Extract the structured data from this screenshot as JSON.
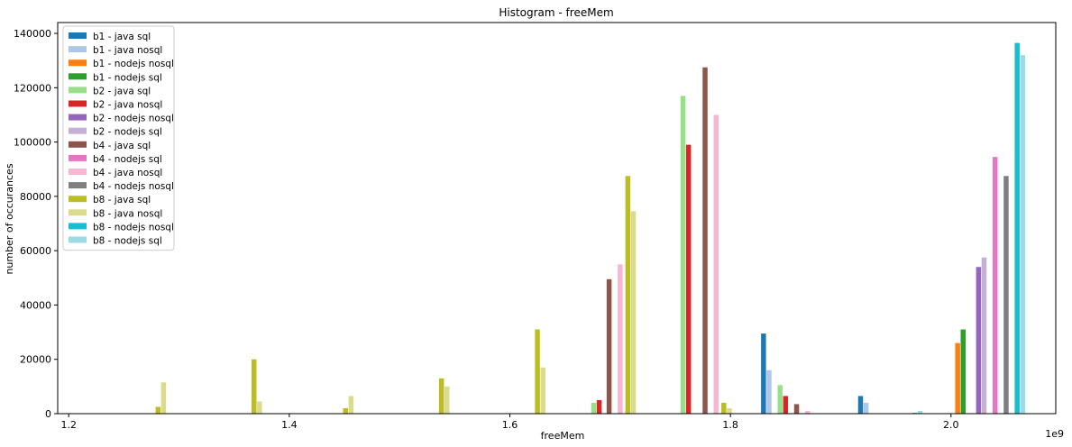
{
  "chart_data": {
    "type": "bar",
    "title": "Histogram - freeMem",
    "xlabel": "freeMem",
    "ylabel": "number of occurances",
    "x_offset_label": "1e9",
    "xlim": [
      1.19,
      2.095
    ],
    "ylim": [
      0,
      144000
    ],
    "xticks": [
      1.2,
      1.4,
      1.6,
      1.8,
      2.0
    ],
    "xtick_labels": [
      "1.2",
      "1.4",
      "1.6",
      "1.8",
      "2.0"
    ],
    "yticks": [
      0,
      20000,
      40000,
      60000,
      80000,
      100000,
      120000,
      140000
    ],
    "ytick_labels": [
      "0",
      "20000",
      "40000",
      "60000",
      "80000",
      "100000",
      "120000",
      "140000"
    ],
    "grid": false,
    "legend_position": "top-left",
    "bar_width": 0.0045,
    "series": [
      {
        "name": "b1 - java sql",
        "color": "#1f77b4",
        "x": [
          1.83,
          1.918
        ],
        "values": [
          29500,
          6500
        ]
      },
      {
        "name": "b1 - java nosql",
        "color": "#aec7e8",
        "x": [
          1.835,
          1.923
        ],
        "values": [
          16000,
          4000
        ]
      },
      {
        "name": "b1 - nodejs nosql",
        "color": "#ff7f0e",
        "x": [
          2.006
        ],
        "values": [
          26000
        ]
      },
      {
        "name": "b1 - nodejs sql",
        "color": "#2ca02c",
        "x": [
          2.011
        ],
        "values": [
          31000
        ]
      },
      {
        "name": "b2 - java sql",
        "color": "#98df8a",
        "x": [
          1.676,
          1.757,
          1.845
        ],
        "values": [
          4000,
          117000,
          10500
        ]
      },
      {
        "name": "b2 - java nosql",
        "color": "#d62728",
        "x": [
          1.681,
          1.762,
          1.85
        ],
        "values": [
          5000,
          99000,
          6500
        ]
      },
      {
        "name": "b2 - nodejs nosql",
        "color": "#9467bd",
        "x": [
          2.025
        ],
        "values": [
          54000
        ]
      },
      {
        "name": "b2 - nodejs sql",
        "color": "#c5b0d5",
        "x": [
          2.03
        ],
        "values": [
          57500
        ]
      },
      {
        "name": "b4 - java sql",
        "color": "#8c564b",
        "x": [
          1.69,
          1.777,
          1.86
        ],
        "values": [
          49500,
          127500,
          3500
        ]
      },
      {
        "name": "b4 - nodejs sql",
        "color": "#e377c2",
        "x": [
          2.04
        ],
        "values": [
          94500
        ]
      },
      {
        "name": "b4 - java nosql",
        "color": "#f7b6d2",
        "x": [
          1.7,
          1.787,
          1.87
        ],
        "values": [
          55000,
          110000,
          1000
        ]
      },
      {
        "name": "b4 - nodejs nosql",
        "color": "#7f7f7f",
        "x": [
          2.05
        ],
        "values": [
          87500
        ]
      },
      {
        "name": "b8 - java sql",
        "color": "#bcbd22",
        "x": [
          1.281,
          1.368,
          1.451,
          1.538,
          1.625,
          1.707,
          1.794
        ],
        "values": [
          2500,
          20000,
          2000,
          13000,
          31000,
          87500,
          4000
        ]
      },
      {
        "name": "b8 - java nosql",
        "color": "#dbdb8d",
        "x": [
          1.286,
          1.373,
          1.456,
          1.543,
          1.63,
          1.712,
          1.799
        ],
        "values": [
          11500,
          4500,
          6500,
          10000,
          17000,
          74500,
          2000
        ]
      },
      {
        "name": "b8 - nodejs nosql",
        "color": "#17becf",
        "x": [
          1.967,
          2.06
        ],
        "values": [
          300,
          136500
        ]
      },
      {
        "name": "b8 - nodejs sql",
        "color": "#9edae5",
        "x": [
          1.972,
          2.065
        ],
        "values": [
          1000,
          132000
        ]
      }
    ]
  }
}
